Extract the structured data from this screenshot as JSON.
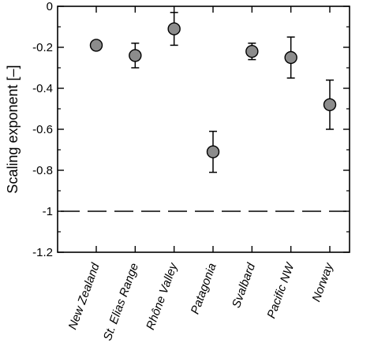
{
  "chart_data": {
    "type": "scatter",
    "categories": [
      "New Zealand",
      "St. Elias Range",
      "Rhône Valley",
      "Patagonia",
      "Svalbard",
      "Pacific NW",
      "Norway"
    ],
    "values": [
      -0.19,
      -0.24,
      -0.11,
      -0.71,
      -0.22,
      -0.25,
      -0.48
    ],
    "error_low": [
      -0.21,
      -0.3,
      -0.19,
      -0.81,
      -0.26,
      -0.35,
      -0.6
    ],
    "error_high": [
      -0.17,
      -0.18,
      -0.03,
      -0.61,
      -0.18,
      -0.15,
      -0.36
    ],
    "reference_line": -1,
    "title": "",
    "xlabel": "",
    "ylabel": "Scaling exponent [–]",
    "ylim": [
      -1.2,
      0
    ],
    "yticks": [
      0,
      -0.2,
      -0.4,
      -0.6,
      -0.8,
      -1,
      -1.2
    ],
    "ytick_labels": [
      "0",
      "-0.2",
      "-0.4",
      "-0.6",
      "-0.8",
      "-1",
      "-1.2"
    ],
    "grid": false,
    "legend": "none",
    "marker_color": "#8c8c8c"
  }
}
